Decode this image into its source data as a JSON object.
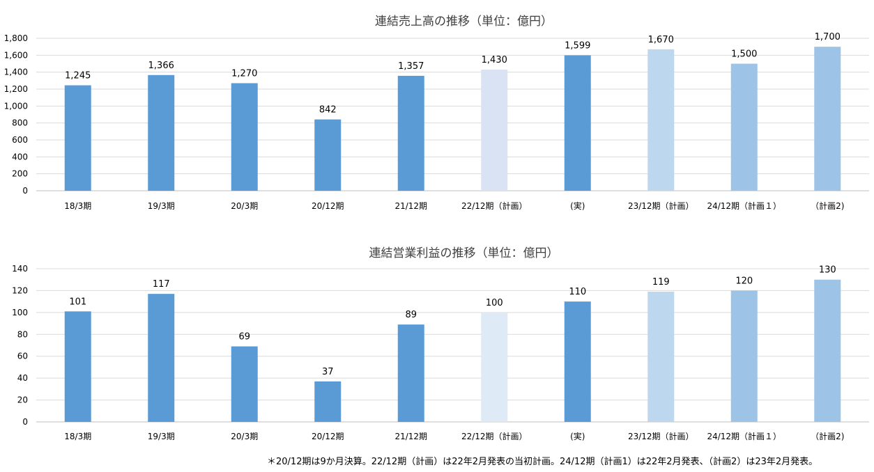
{
  "chart_data": [
    {
      "type": "bar",
      "title": "連結売上高の推移（単位：億円）",
      "categories": [
        "18/3期",
        "19/3期",
        "20/3期",
        "20/12期",
        "21/12期",
        "22/12期（計画）",
        "(実)",
        "23/12期（計画）",
        "24/12期（計画１）",
        "（計画2)"
      ],
      "values": [
        1245,
        1366,
        1270,
        842,
        1357,
        1430,
        1599,
        1670,
        1500,
        1700
      ],
      "data_labels": [
        "1,245",
        "1,366",
        "1,270",
        "842",
        "1,357",
        "1,430",
        "1,599",
        "1,670",
        "1,500",
        "1,700"
      ],
      "bar_colors": [
        "#5b9bd5",
        "#5b9bd5",
        "#5b9bd5",
        "#5b9bd5",
        "#5b9bd5",
        "#dae3f3",
        "#5b9bd5",
        "#bdd7ee",
        "#9dc3e6",
        "#9dc3e6"
      ],
      "ylim": [
        0,
        1800
      ],
      "yticks": [
        0,
        200,
        400,
        600,
        800,
        1000,
        1200,
        1400,
        1600,
        1800
      ],
      "ytick_labels": [
        "0",
        "200",
        "400",
        "600",
        "800",
        "1,000",
        "1,200",
        "1,400",
        "1,600",
        "1,800"
      ],
      "grid": true,
      "xlabel": "",
      "ylabel": ""
    },
    {
      "type": "bar",
      "title": "連結営業利益の推移（単位：億円）",
      "categories": [
        "18/3期",
        "19/3期",
        "20/3期",
        "20/12期",
        "21/12期",
        "22/12期（計画）",
        "(実)",
        "23/12期（計画）",
        "24/12期（計画１）",
        "（計画2)"
      ],
      "values": [
        101,
        117,
        69,
        37,
        89,
        100,
        110,
        119,
        120,
        130
      ],
      "data_labels": [
        "101",
        "117",
        "69",
        "37",
        "89",
        "100",
        "110",
        "119",
        "120",
        "130"
      ],
      "bar_colors": [
        "#5b9bd5",
        "#5b9bd5",
        "#5b9bd5",
        "#5b9bd5",
        "#5b9bd5",
        "#deebf7",
        "#5b9bd5",
        "#bdd7ee",
        "#9dc3e6",
        "#9dc3e6"
      ],
      "ylim": [
        0,
        140
      ],
      "yticks": [
        0,
        20,
        40,
        60,
        80,
        100,
        120,
        140
      ],
      "ytick_labels": [
        "0",
        "20",
        "40",
        "60",
        "80",
        "100",
        "120",
        "140"
      ],
      "grid": true,
      "xlabel": "",
      "ylabel": ""
    }
  ],
  "footnote": "＊20/12期は9か月決算。22/12期（計画）は22年2月発表の当初計画。24/12期（計画1）は22年2月発表、（計画2）は23年2月発表。"
}
